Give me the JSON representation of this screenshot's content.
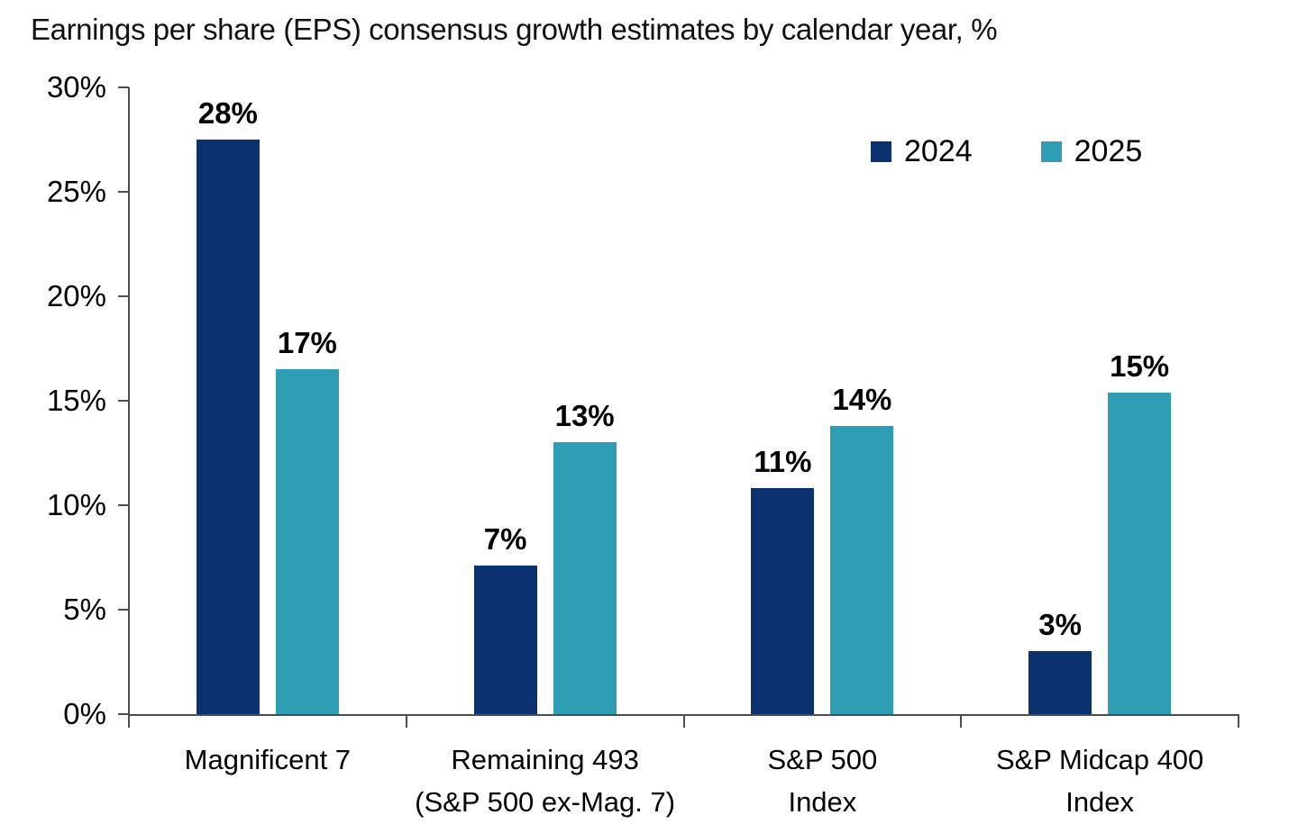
{
  "page": {
    "background_color": "#ffffff",
    "text_color": "#000000",
    "axis_color": "#4d4d4d"
  },
  "chart_data": {
    "type": "bar",
    "title": "Earnings per share (EPS) consensus growth estimates by calendar year, %",
    "categories": [
      "Magnificent 7",
      "Remaining 493 (S&P 500 ex-Mag. 7)",
      "S&P 500 Index",
      "S&P Midcap 400 Index"
    ],
    "category_label_lines": [
      [
        "Magnificent 7"
      ],
      [
        "Remaining 493",
        "(S&P 500 ex-Mag. 7)"
      ],
      [
        "S&P 500",
        "Index"
      ],
      [
        "S&P Midcap 400",
        "Index"
      ]
    ],
    "series": [
      {
        "name": "2024",
        "color": "#0b316e",
        "values": [
          28,
          7,
          11,
          3
        ],
        "bar_labels": [
          "28%",
          "7%",
          "11%",
          "3%"
        ],
        "values_plotted": [
          27.5,
          7.1,
          10.8,
          3.0
        ]
      },
      {
        "name": "2025",
        "color": "#2f9db4",
        "values": [
          17,
          13,
          14,
          15
        ],
        "bar_labels": [
          "17%",
          "13%",
          "14%",
          "15%"
        ],
        "values_plotted": [
          16.5,
          13.0,
          13.8,
          15.4
        ]
      }
    ],
    "xlabel": "",
    "ylabel": "",
    "ylim": [
      0,
      30
    ],
    "ytick_values": [
      0,
      5,
      10,
      15,
      20,
      25,
      30
    ],
    "ytick_labels": [
      "0%",
      "5%",
      "10%",
      "15%",
      "20%",
      "25%",
      "30%"
    ],
    "grid": false,
    "legend_position": "top-right"
  }
}
